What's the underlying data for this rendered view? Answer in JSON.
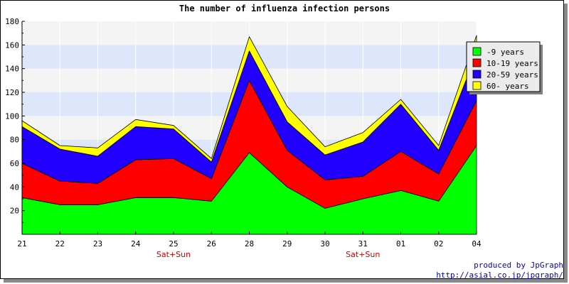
{
  "chart_data": {
    "type": "area",
    "stacked": true,
    "title": "The number of influenza infection persons",
    "categories": [
      "21",
      "22",
      "23",
      "24",
      "25",
      "26",
      "28",
      "29",
      "30",
      "31",
      "01",
      "02",
      "04"
    ],
    "category_sublabels": [
      "",
      "",
      "",
      "",
      "Sat+Sun",
      "",
      "",
      "",
      "",
      "Sat+Sun",
      "",
      "",
      ""
    ],
    "ylim": [
      0,
      180
    ],
    "yticks": [
      20,
      40,
      60,
      80,
      100,
      120,
      140,
      160,
      180
    ],
    "series": [
      {
        "name": "-9 years",
        "color": "#00ff00",
        "values": [
          31,
          25,
          25,
          31,
          31,
          28,
          69,
          40,
          22,
          30,
          37,
          28,
          75
        ]
      },
      {
        "name": "10-19 years",
        "color": "#ff0000",
        "values": [
          29,
          20,
          18,
          32,
          33,
          19,
          61,
          31,
          24,
          19,
          33,
          23,
          38
        ]
      },
      {
        "name": "20-59 years",
        "color": "#2200ff",
        "values": [
          31,
          27,
          23,
          28,
          25,
          14,
          25,
          24,
          21,
          29,
          40,
          20,
          40
        ]
      },
      {
        "name": "60- years",
        "color": "#ffff00",
        "values": [
          5,
          3,
          7,
          6,
          3,
          3,
          12,
          13,
          7,
          8,
          4,
          4,
          15
        ]
      }
    ],
    "grid": "horizontal bands",
    "legend_position": "right"
  },
  "credits": {
    "line1": "produced by JpGraph",
    "line2": "http://asial.co.jp/jpgraph/"
  }
}
